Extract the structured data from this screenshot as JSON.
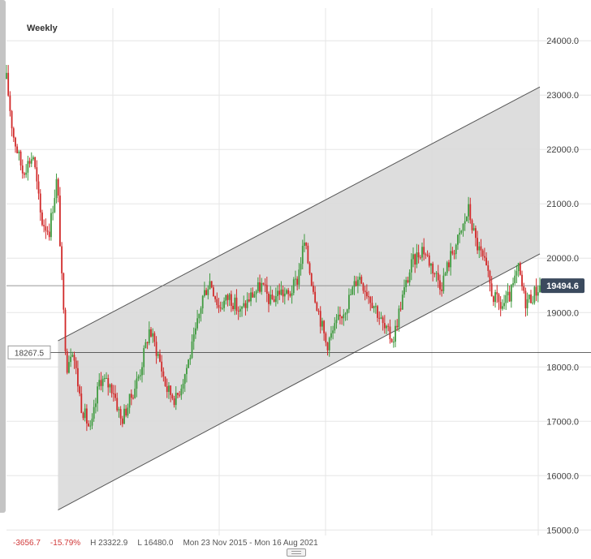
{
  "window": {
    "period": "Weekly"
  },
  "colors": {
    "up": "#3f9a3f",
    "down": "#d12a2a",
    "channel_fill": "#d9d9d9",
    "channel_line": "#555555",
    "grid": "#e6e6e6",
    "axis_text": "#444444",
    "badge_bg": "#3b4a5e"
  },
  "stats": {
    "change": "-3656.7",
    "change_pct": "-15.79%",
    "high": "H 23322.9",
    "low": "L 16480.0",
    "range": "Mon 23 Nov 2015 - Mon 16 Aug 2021"
  },
  "chart_data": {
    "type": "candlestick",
    "period": "Weekly",
    "y_ticks": [
      "24000.0",
      "23000.0",
      "22000.0",
      "21000.0",
      "20000.0",
      "19000.0",
      "18000.0",
      "17000.0",
      "16000.0",
      "15000.0"
    ],
    "ylim": [
      14900,
      24600
    ],
    "last_price": "19494.6",
    "crosshair_price": "18267.5",
    "grid": true,
    "channel": {
      "upper": [
        [
          0.0966,
          18480
        ],
        [
          1.0,
          23150
        ]
      ],
      "lower": [
        [
          0.0966,
          15370
        ],
        [
          1.0,
          20080
        ]
      ]
    },
    "price_path": [
      [
        0.0,
        23300
      ],
      [
        0.012,
        22300
      ],
      [
        0.03,
        21600
      ],
      [
        0.05,
        21900
      ],
      [
        0.065,
        20700
      ],
      [
        0.08,
        20500
      ],
      [
        0.095,
        21500
      ],
      [
        0.105,
        19300
      ],
      [
        0.113,
        18000
      ],
      [
        0.123,
        18400
      ],
      [
        0.14,
        17300
      ],
      [
        0.158,
        16800
      ],
      [
        0.175,
        17800
      ],
      [
        0.2,
        17600
      ],
      [
        0.215,
        17000
      ],
      [
        0.232,
        17400
      ],
      [
        0.25,
        17900
      ],
      [
        0.268,
        18700
      ],
      [
        0.285,
        18200
      ],
      [
        0.3,
        17600
      ],
      [
        0.318,
        17400
      ],
      [
        0.335,
        17900
      ],
      [
        0.352,
        18500
      ],
      [
        0.368,
        19300
      ],
      [
        0.382,
        19600
      ],
      [
        0.398,
        19100
      ],
      [
        0.418,
        19300
      ],
      [
        0.438,
        19000
      ],
      [
        0.458,
        19300
      ],
      [
        0.478,
        19500
      ],
      [
        0.495,
        19200
      ],
      [
        0.512,
        19400
      ],
      [
        0.528,
        19300
      ],
      [
        0.545,
        19600
      ],
      [
        0.558,
        20300
      ],
      [
        0.572,
        19600
      ],
      [
        0.588,
        18900
      ],
      [
        0.6,
        18400
      ],
      [
        0.62,
        18800
      ],
      [
        0.64,
        19200
      ],
      [
        0.66,
        19700
      ],
      [
        0.675,
        19400
      ],
      [
        0.692,
        19100
      ],
      [
        0.708,
        18700
      ],
      [
        0.725,
        18500
      ],
      [
        0.74,
        19200
      ],
      [
        0.76,
        19900
      ],
      [
        0.78,
        20200
      ],
      [
        0.8,
        19800
      ],
      [
        0.815,
        19500
      ],
      [
        0.835,
        20100
      ],
      [
        0.85,
        20400
      ],
      [
        0.866,
        20900
      ],
      [
        0.88,
        20300
      ],
      [
        0.896,
        19900
      ],
      [
        0.912,
        19300
      ],
      [
        0.928,
        19100
      ],
      [
        0.944,
        19300
      ],
      [
        0.96,
        19800
      ],
      [
        0.972,
        19200
      ],
      [
        0.985,
        19300
      ],
      [
        1.0,
        19495
      ]
    ]
  }
}
